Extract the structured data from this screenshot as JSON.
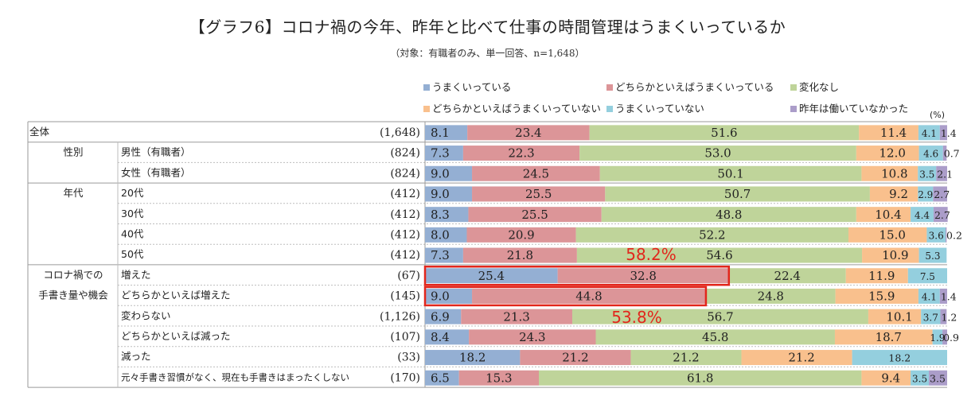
{
  "header": {
    "title": "【グラフ6】コロナ禍の今年、昨年と比べて仕事の時間管理はうまくいっているか",
    "subtitle": "（対象：有職者のみ、単一回答、n=1,648）"
  },
  "unit_label": "(%)",
  "chart_data": {
    "type": "bar",
    "orientation": "horizontal",
    "stacked": "100%",
    "xlim": [
      0,
      100
    ],
    "legend_position": "top-right",
    "series": [
      {
        "name": "うまくいっている",
        "color": "#94afd3",
        "values": [
          8.1,
          7.3,
          9.0,
          9.0,
          8.3,
          8.0,
          7.3,
          25.4,
          9.0,
          6.9,
          8.4,
          18.2,
          6.5
        ]
      },
      {
        "name": "どちらかといえばうまくいっている",
        "color": "#dc9598",
        "values": [
          23.4,
          22.3,
          24.5,
          25.5,
          25.5,
          20.9,
          21.8,
          32.8,
          44.8,
          21.3,
          24.3,
          21.2,
          15.3
        ]
      },
      {
        "name": "変化なし",
        "color": "#bfd49a",
        "values": [
          51.6,
          53.0,
          50.1,
          50.7,
          48.8,
          52.2,
          54.6,
          22.4,
          24.8,
          56.7,
          45.8,
          21.2,
          61.8
        ]
      },
      {
        "name": "どちらかといえばうまくいっていない",
        "color": "#f9c08d",
        "values": [
          11.4,
          12.0,
          10.8,
          9.2,
          10.4,
          15.0,
          10.9,
          11.9,
          15.9,
          10.1,
          18.7,
          21.2,
          9.4
        ]
      },
      {
        "name": "うまくいっていない",
        "color": "#94cfde",
        "values": [
          4.1,
          4.6,
          3.5,
          2.9,
          4.4,
          3.6,
          5.3,
          7.5,
          4.1,
          3.7,
          1.9,
          18.2,
          3.5
        ]
      },
      {
        "name": "昨年は働いていなかった",
        "color": "#ab9dc9",
        "values": [
          1.4,
          0.7,
          2.1,
          2.7,
          2.7,
          0.2,
          0.0,
          0.0,
          1.4,
          1.2,
          0.9,
          0.0,
          3.5
        ]
      }
    ],
    "categories": [
      {
        "group": "全体",
        "label": "",
        "n": "(1,648)"
      },
      {
        "group": "性別",
        "label": "男性（有職者）",
        "n": "(824)"
      },
      {
        "group": "",
        "label": "女性（有職者）",
        "n": "(824)"
      },
      {
        "group": "年代",
        "label": "20代",
        "n": "(412)"
      },
      {
        "group": "",
        "label": "30代",
        "n": "(412)"
      },
      {
        "group": "",
        "label": "40代",
        "n": "(412)"
      },
      {
        "group": "",
        "label": "50代",
        "n": "(412)"
      },
      {
        "group": "コロナ禍での手書き量や機会",
        "label": "増えた",
        "n": "(67)"
      },
      {
        "group": "",
        "label": "どちらかといえば増えた",
        "n": "(145)"
      },
      {
        "group": "",
        "label": "変わらない",
        "n": "(1,126)"
      },
      {
        "group": "",
        "label": "どちらかといえば減った",
        "n": "(107)"
      },
      {
        "group": "",
        "label": "減った",
        "n": "(33)"
      },
      {
        "group": "",
        "label": "元々手書き習慣がなく、現在も手書きはまったくしない",
        "n": "(170)"
      }
    ],
    "group_labels": {
      "gender": "性別",
      "age": "年代",
      "handwriting_line1": "コロナ禍での",
      "handwriting_line2": "手書き量や機会"
    },
    "annotations": [
      {
        "text": "58.2%",
        "row": 7,
        "series": [
          0,
          1
        ],
        "color": "#e2261c"
      },
      {
        "text": "53.8%",
        "row": 8,
        "series": [
          0,
          1
        ],
        "color": "#e2261c"
      }
    ]
  }
}
